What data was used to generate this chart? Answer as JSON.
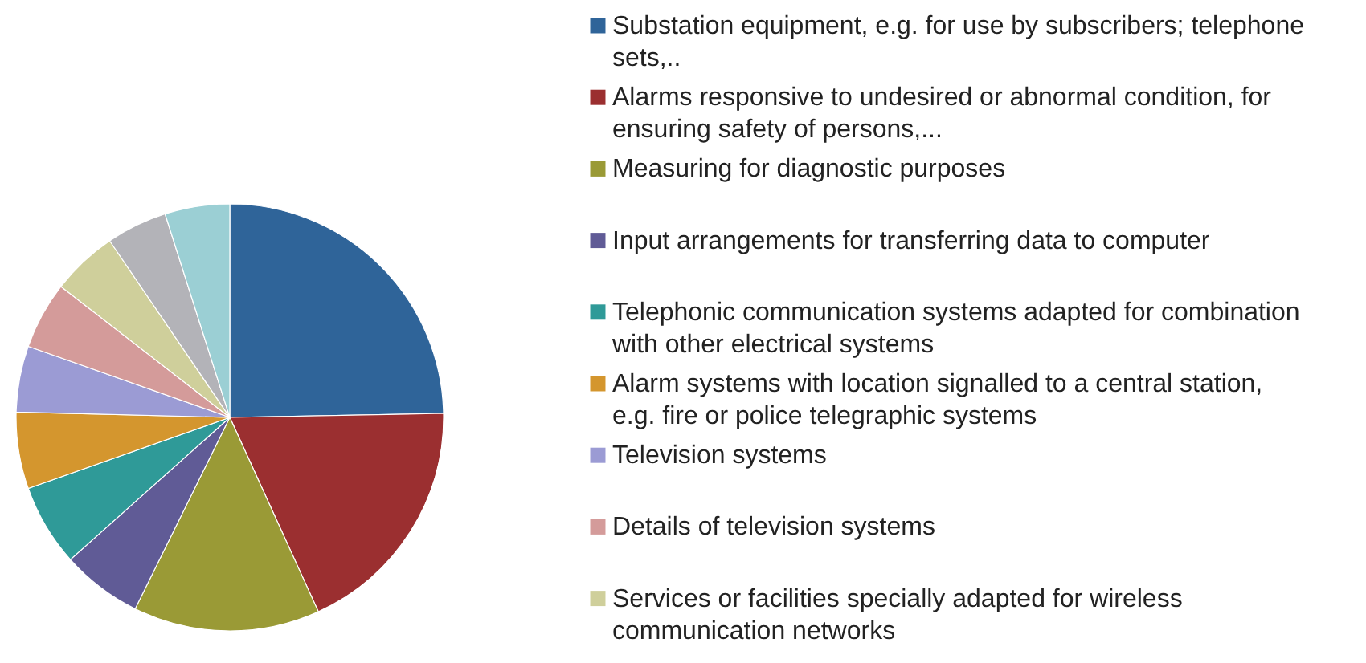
{
  "chart_data": {
    "type": "pie",
    "categories": [
      "Substation equipment, e.g. for use by subscribers; telephone sets,..",
      "Alarms responsive to undesired or abnormal condition, for ensuring safety of persons,...",
      "Measuring for diagnostic purposes",
      "Input arrangements for transferring data to  computer",
      "Telephonic communication systems adapted for combination with other electrical systems",
      "Alarm systems with location signalled to a central station, e.g. fire or police telegraphic systems",
      "Television systems",
      "Details of television systems",
      "Services or facilities specially adapted for wireless communication networks",
      null,
      null
    ],
    "values": [
      24.7,
      18.5,
      14.1,
      6.1,
      6.2,
      5.8,
      5.0,
      5.1,
      5.0,
      4.6,
      4.9
    ],
    "colors": [
      "#2f6499",
      "#9b2f30",
      "#9a9a36",
      "#605b96",
      "#2f9a98",
      "#d4962e",
      "#9b9bd4",
      "#d49b9a",
      "#cfcf9b",
      "#b3b3b8",
      "#9bcfd4"
    ],
    "legend": "right"
  }
}
